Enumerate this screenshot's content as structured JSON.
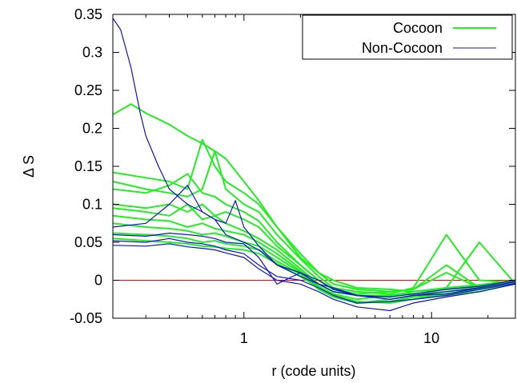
{
  "chart_data": {
    "type": "line",
    "xlabel": "r (code units)",
    "ylabel": "Δ S",
    "xscale": "log",
    "xlim": [
      0.2,
      28
    ],
    "ylim": [
      -0.05,
      0.35
    ],
    "x_ticks": [
      1,
      10
    ],
    "x_tick_labels": [
      "1",
      "10"
    ],
    "y_ticks": [
      -0.05,
      0,
      0.05,
      0.1,
      0.15,
      0.2,
      0.25,
      0.3,
      0.35
    ],
    "y_tick_labels": [
      "-0.05",
      "0",
      "0.05",
      "0.1",
      "0.15",
      "0.2",
      "0.25",
      "0.3",
      "0.35"
    ],
    "grid": false,
    "legend_position": "top-right",
    "colors": {
      "cocoon": "#22ee22",
      "non_cocoon": "#1111cc",
      "zero_line": "#ee0000",
      "axes": "#000000"
    },
    "reference_line": {
      "y": 0
    },
    "series": [
      {
        "name": "Cocoon",
        "group": "cocoon",
        "curves": [
          {
            "x": [
              0.2,
              0.25,
              0.3,
              0.4,
              0.5,
              0.6,
              0.7,
              0.8,
              1.0,
              1.2,
              1.5,
              2.0,
              2.5,
              3.0,
              4.0,
              6.0,
              8.0,
              12.0,
              18.0,
              28.0
            ],
            "y": [
              0.218,
              0.232,
              0.22,
              0.205,
              0.19,
              0.18,
              0.17,
              0.16,
              0.13,
              0.105,
              0.07,
              0.03,
              0.01,
              0.0,
              -0.01,
              -0.012,
              -0.015,
              -0.01,
              -0.006,
              0.0
            ]
          },
          {
            "x": [
              0.2,
              0.3,
              0.4,
              0.5,
              0.6,
              0.7,
              0.8,
              1.0,
              1.2,
              1.5,
              2.0,
              2.5,
              3.0,
              4.0,
              6.0,
              8.0,
              12.0,
              18.0,
              28.0
            ],
            "y": [
              0.142,
              0.135,
              0.13,
              0.12,
              0.185,
              0.15,
              0.13,
              0.115,
              0.1,
              0.07,
              0.035,
              0.01,
              -0.005,
              -0.012,
              -0.015,
              -0.012,
              0.02,
              -0.01,
              -0.005
            ]
          },
          {
            "x": [
              0.2,
              0.3,
              0.4,
              0.5,
              0.6,
              0.7,
              0.8,
              1.0,
              1.2,
              1.5,
              2.0,
              2.5,
              3.0,
              4.0,
              6.0,
              8.0,
              12.0,
              18.0,
              28.0
            ],
            "y": [
              0.13,
              0.12,
              0.115,
              0.11,
              0.12,
              0.17,
              0.12,
              0.1,
              0.09,
              0.06,
              0.028,
              0.005,
              -0.01,
              -0.015,
              -0.018,
              -0.01,
              0.06,
              0.0,
              -0.003
            ]
          },
          {
            "x": [
              0.2,
              0.3,
              0.4,
              0.5,
              0.6,
              0.7,
              0.8,
              1.0,
              1.2,
              1.5,
              2.0,
              2.5,
              3.0,
              4.0,
              6.0,
              8.0,
              12.0,
              18.0,
              28.0
            ],
            "y": [
              0.12,
              0.115,
              0.125,
              0.14,
              0.115,
              0.11,
              0.1,
              0.09,
              0.078,
              0.05,
              0.02,
              0.0,
              -0.012,
              -0.02,
              -0.02,
              -0.015,
              -0.01,
              0.05,
              -0.005
            ]
          },
          {
            "x": [
              0.2,
              0.3,
              0.4,
              0.5,
              0.6,
              0.7,
              0.8,
              1.0,
              1.2,
              1.5,
              2.0,
              2.5,
              3.0,
              4.0,
              6.0,
              8.0,
              12.0,
              18.0,
              28.0
            ],
            "y": [
              0.1,
              0.095,
              0.1,
              0.09,
              0.1,
              0.085,
              0.09,
              0.08,
              0.07,
              0.045,
              0.02,
              0.0,
              -0.012,
              -0.018,
              -0.015,
              -0.012,
              0.01,
              -0.01,
              -0.004
            ]
          },
          {
            "x": [
              0.2,
              0.3,
              0.4,
              0.5,
              0.6,
              0.7,
              0.8,
              1.0,
              1.2,
              1.5,
              2.0,
              2.5,
              3.0,
              4.0,
              6.0,
              8.0,
              12.0,
              18.0,
              28.0
            ],
            "y": [
              0.095,
              0.09,
              0.085,
              0.1,
              0.08,
              0.085,
              0.075,
              0.065,
              0.055,
              0.04,
              0.015,
              -0.005,
              -0.015,
              -0.02,
              -0.022,
              -0.015,
              -0.012,
              -0.008,
              0.0
            ]
          },
          {
            "x": [
              0.2,
              0.3,
              0.4,
              0.5,
              0.6,
              0.7,
              0.8,
              1.0,
              1.2,
              1.5,
              2.0,
              2.5,
              3.0,
              4.0,
              6.0,
              8.0,
              12.0,
              18.0,
              28.0
            ],
            "y": [
              0.085,
              0.08,
              0.078,
              0.07,
              0.075,
              0.068,
              0.065,
              0.06,
              0.05,
              0.035,
              0.012,
              -0.008,
              -0.018,
              -0.025,
              -0.02,
              -0.018,
              -0.015,
              -0.01,
              -0.002
            ]
          },
          {
            "x": [
              0.2,
              0.3,
              0.4,
              0.5,
              0.6,
              0.7,
              0.8,
              1.0,
              1.2,
              1.5,
              2.0,
              2.5,
              3.0,
              4.0,
              6.0,
              8.0,
              12.0,
              18.0,
              28.0
            ],
            "y": [
              0.075,
              0.07,
              0.068,
              0.065,
              0.06,
              0.062,
              0.058,
              0.05,
              0.045,
              0.03,
              0.01,
              -0.01,
              -0.02,
              -0.03,
              -0.025,
              -0.02,
              -0.018,
              -0.012,
              -0.003
            ]
          },
          {
            "x": [
              0.2,
              0.3,
              0.4,
              0.5,
              0.6,
              0.7,
              0.8,
              1.0,
              1.2,
              1.5,
              2.0,
              2.5,
              3.0,
              4.0,
              6.0,
              8.0,
              12.0,
              18.0,
              28.0
            ],
            "y": [
              0.062,
              0.06,
              0.058,
              0.055,
              0.05,
              0.052,
              0.048,
              0.045,
              0.04,
              0.025,
              0.008,
              -0.012,
              -0.022,
              -0.03,
              -0.028,
              -0.022,
              -0.02,
              -0.015,
              -0.004
            ]
          },
          {
            "x": [
              0.2,
              0.3,
              0.4,
              0.5,
              0.6,
              0.7,
              0.8,
              1.0,
              1.2,
              1.5,
              2.0,
              2.5,
              3.0,
              4.0,
              6.0,
              8.0,
              12.0,
              18.0,
              28.0
            ],
            "y": [
              0.055,
              0.052,
              0.05,
              0.048,
              0.045,
              0.044,
              0.042,
              0.04,
              0.035,
              0.022,
              0.005,
              -0.01,
              -0.02,
              -0.028,
              -0.03,
              -0.025,
              -0.02,
              -0.012,
              -0.003
            ]
          }
        ]
      },
      {
        "name": "Non-Cocoon",
        "group": "non_cocoon",
        "curves": [
          {
            "x": [
              0.2,
              0.22,
              0.25,
              0.28,
              0.3,
              0.35,
              0.4,
              0.5,
              0.6,
              0.7,
              0.8,
              1.0,
              1.2,
              1.5,
              2.0,
              2.5,
              3.0,
              4.0,
              6.0,
              8.0,
              12.0,
              18.0,
              28.0
            ],
            "y": [
              0.345,
              0.33,
              0.28,
              0.22,
              0.19,
              0.15,
              0.12,
              0.1,
              0.09,
              0.08,
              0.06,
              0.05,
              0.04,
              0.02,
              0.005,
              -0.005,
              -0.01,
              -0.02,
              -0.025,
              -0.02,
              -0.015,
              -0.01,
              -0.002
            ]
          },
          {
            "x": [
              0.2,
              0.3,
              0.4,
              0.5,
              0.6,
              0.7,
              0.8,
              0.9,
              1.0,
              1.2,
              1.5,
              2.0,
              2.5,
              3.0,
              4.0,
              6.0,
              8.0,
              12.0,
              18.0,
              28.0
            ],
            "y": [
              0.07,
              0.075,
              0.1,
              0.125,
              0.09,
              0.08,
              0.075,
              0.105,
              0.07,
              0.045,
              0.02,
              0.01,
              -0.005,
              -0.015,
              -0.02,
              -0.022,
              -0.018,
              -0.012,
              -0.008,
              0.0
            ]
          },
          {
            "x": [
              0.2,
              0.3,
              0.4,
              0.5,
              0.6,
              0.7,
              0.8,
              1.0,
              1.2,
              1.5,
              2.0,
              2.5,
              3.0,
              4.0,
              6.0,
              8.0,
              12.0,
              18.0,
              28.0
            ],
            "y": [
              0.06,
              0.058,
              0.062,
              0.06,
              0.058,
              0.055,
              0.05,
              0.048,
              0.03,
              -0.005,
              0.01,
              0.0,
              -0.012,
              -0.02,
              -0.025,
              -0.02,
              -0.018,
              -0.01,
              -0.002
            ]
          },
          {
            "x": [
              0.2,
              0.3,
              0.4,
              0.5,
              0.6,
              0.7,
              0.8,
              1.0,
              1.2,
              1.5,
              2.0,
              2.5,
              3.0,
              4.0,
              6.0,
              8.0,
              12.0,
              18.0,
              28.0
            ],
            "y": [
              0.052,
              0.05,
              0.055,
              0.05,
              0.048,
              0.045,
              0.04,
              0.035,
              0.02,
              0.005,
              0.0,
              -0.01,
              -0.02,
              -0.03,
              -0.028,
              -0.025,
              -0.02,
              -0.012,
              -0.004
            ]
          },
          {
            "x": [
              0.2,
              0.3,
              0.4,
              0.5,
              0.6,
              0.7,
              0.8,
              1.0,
              1.2,
              1.5,
              2.0,
              2.5,
              3.0,
              4.0,
              6.0,
              8.0,
              12.0,
              18.0,
              28.0
            ],
            "y": [
              0.046,
              0.045,
              0.048,
              0.044,
              0.042,
              0.04,
              0.036,
              0.03,
              0.015,
              0.0,
              -0.005,
              -0.015,
              -0.025,
              -0.035,
              -0.04,
              -0.03,
              -0.022,
              -0.015,
              -0.005
            ]
          }
        ]
      }
    ]
  }
}
